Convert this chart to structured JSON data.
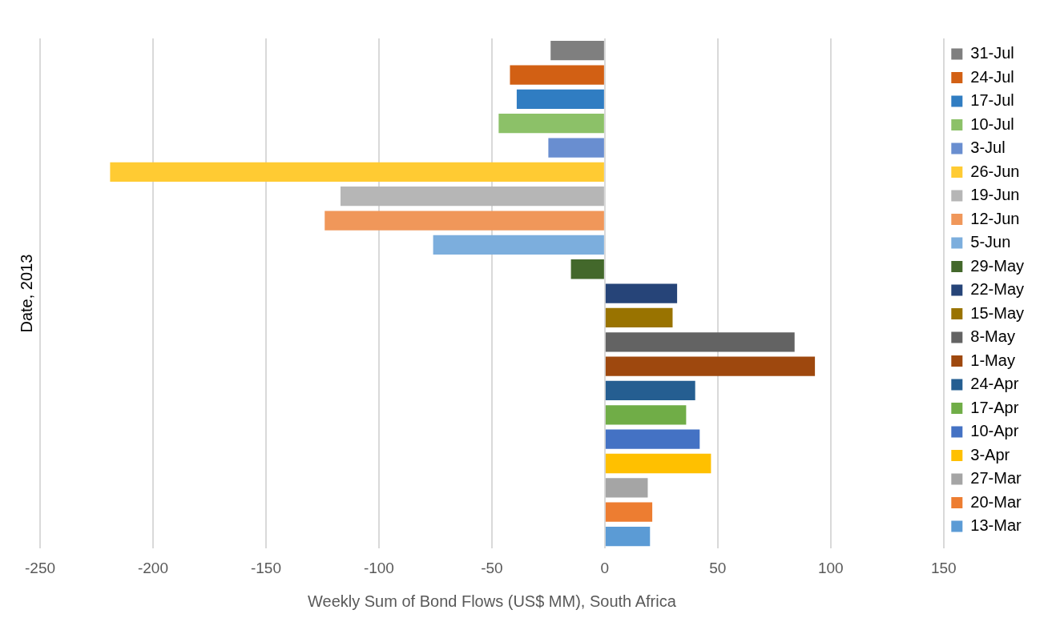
{
  "chart_data": {
    "type": "bar",
    "orientation": "horizontal",
    "xlabel": "Weekly Sum of Bond Flows (US$ MM), South Africa",
    "ylabel": "Date, 2013",
    "categories": [
      null,
      null,
      null,
      null,
      null,
      null,
      null,
      null,
      null,
      null,
      null,
      null,
      null,
      null,
      null,
      null,
      null,
      null,
      null,
      null,
      null
    ],
    "series": [
      {
        "name": "31-Jul",
        "color": "#7f7f7f",
        "values": [
          -24,
          null,
          null,
          null,
          null,
          null,
          null,
          null,
          null,
          null,
          null,
          null,
          null,
          null,
          null,
          null,
          null,
          null,
          null,
          null,
          null
        ]
      },
      {
        "name": "24-Jul",
        "color": "#d26014",
        "values": [
          null,
          -42,
          null,
          null,
          null,
          null,
          null,
          null,
          null,
          null,
          null,
          null,
          null,
          null,
          null,
          null,
          null,
          null,
          null,
          null,
          null
        ]
      },
      {
        "name": "17-Jul",
        "color": "#307dc2",
        "values": [
          null,
          null,
          -39,
          null,
          null,
          null,
          null,
          null,
          null,
          null,
          null,
          null,
          null,
          null,
          null,
          null,
          null,
          null,
          null,
          null,
          null
        ]
      },
      {
        "name": "10-Jul",
        "color": "#8cc168",
        "values": [
          null,
          null,
          null,
          -47,
          null,
          null,
          null,
          null,
          null,
          null,
          null,
          null,
          null,
          null,
          null,
          null,
          null,
          null,
          null,
          null,
          null
        ]
      },
      {
        "name": "3-Jul",
        "color": "#698ed0",
        "values": [
          null,
          null,
          null,
          null,
          -25,
          null,
          null,
          null,
          null,
          null,
          null,
          null,
          null,
          null,
          null,
          null,
          null,
          null,
          null,
          null,
          null
        ]
      },
      {
        "name": "26-Jun",
        "color": "#ffcb33",
        "values": [
          null,
          null,
          null,
          null,
          null,
          -219,
          null,
          null,
          null,
          null,
          null,
          null,
          null,
          null,
          null,
          null,
          null,
          null,
          null,
          null,
          null
        ]
      },
      {
        "name": "19-Jun",
        "color": "#b6b6b6",
        "values": [
          null,
          null,
          null,
          null,
          null,
          null,
          -117,
          null,
          null,
          null,
          null,
          null,
          null,
          null,
          null,
          null,
          null,
          null,
          null,
          null,
          null
        ]
      },
      {
        "name": "12-Jun",
        "color": "#f0975a",
        "values": [
          null,
          null,
          null,
          null,
          null,
          null,
          null,
          -124,
          null,
          null,
          null,
          null,
          null,
          null,
          null,
          null,
          null,
          null,
          null,
          null,
          null
        ]
      },
      {
        "name": "5-Jun",
        "color": "#7caedd",
        "values": [
          null,
          null,
          null,
          null,
          null,
          null,
          null,
          null,
          -76,
          null,
          null,
          null,
          null,
          null,
          null,
          null,
          null,
          null,
          null,
          null,
          null
        ]
      },
      {
        "name": "29-May",
        "color": "#43682b",
        "values": [
          null,
          null,
          null,
          null,
          null,
          null,
          null,
          null,
          null,
          -15,
          null,
          null,
          null,
          null,
          null,
          null,
          null,
          null,
          null,
          null,
          null
        ]
      },
      {
        "name": "22-May",
        "color": "#264478",
        "values": [
          null,
          null,
          null,
          null,
          null,
          null,
          null,
          null,
          null,
          null,
          32,
          null,
          null,
          null,
          null,
          null,
          null,
          null,
          null,
          null,
          null
        ]
      },
      {
        "name": "15-May",
        "color": "#997300",
        "values": [
          null,
          null,
          null,
          null,
          null,
          null,
          null,
          null,
          null,
          null,
          null,
          30,
          null,
          null,
          null,
          null,
          null,
          null,
          null,
          null,
          null
        ]
      },
      {
        "name": "8-May",
        "color": "#636363",
        "values": [
          null,
          null,
          null,
          null,
          null,
          null,
          null,
          null,
          null,
          null,
          null,
          null,
          84,
          null,
          null,
          null,
          null,
          null,
          null,
          null,
          null
        ]
      },
      {
        "name": "1-May",
        "color": "#9e480e",
        "values": [
          null,
          null,
          null,
          null,
          null,
          null,
          null,
          null,
          null,
          null,
          null,
          null,
          null,
          93,
          null,
          null,
          null,
          null,
          null,
          null,
          null
        ]
      },
      {
        "name": "24-Apr",
        "color": "#255e91",
        "values": [
          null,
          null,
          null,
          null,
          null,
          null,
          null,
          null,
          null,
          null,
          null,
          null,
          null,
          null,
          40,
          null,
          null,
          null,
          null,
          null,
          null
        ]
      },
      {
        "name": "17-Apr",
        "color": "#70ad47",
        "values": [
          null,
          null,
          null,
          null,
          null,
          null,
          null,
          null,
          null,
          null,
          null,
          null,
          null,
          null,
          null,
          36,
          null,
          null,
          null,
          null,
          null
        ]
      },
      {
        "name": "10-Apr",
        "color": "#4472c4",
        "values": [
          null,
          null,
          null,
          null,
          null,
          null,
          null,
          null,
          null,
          null,
          null,
          null,
          null,
          null,
          null,
          null,
          42,
          null,
          null,
          null,
          null
        ]
      },
      {
        "name": "3-Apr",
        "color": "#ffc000",
        "values": [
          null,
          null,
          null,
          null,
          null,
          null,
          null,
          null,
          null,
          null,
          null,
          null,
          null,
          null,
          null,
          null,
          null,
          47,
          null,
          null,
          null
        ]
      },
      {
        "name": "27-Mar",
        "color": "#a5a5a5",
        "values": [
          null,
          null,
          null,
          null,
          null,
          null,
          null,
          null,
          null,
          null,
          null,
          null,
          null,
          null,
          null,
          null,
          null,
          null,
          19,
          null,
          null
        ]
      },
      {
        "name": "20-Mar",
        "color": "#ed7d31",
        "values": [
          null,
          null,
          null,
          null,
          null,
          null,
          null,
          null,
          null,
          null,
          null,
          null,
          null,
          null,
          null,
          null,
          null,
          null,
          null,
          21,
          null
        ]
      },
      {
        "name": "13-Mar",
        "color": "#5b9bd5",
        "values": [
          null,
          null,
          null,
          null,
          null,
          null,
          null,
          null,
          null,
          null,
          null,
          null,
          null,
          null,
          null,
          null,
          null,
          null,
          null,
          null,
          20
        ]
      }
    ],
    "xlim": [
      -250,
      150
    ],
    "xticks": [
      -250,
      -200,
      -150,
      -100,
      -50,
      0,
      50,
      100,
      150
    ],
    "grid": "x",
    "legend": "right",
    "tick_labels": "x"
  }
}
